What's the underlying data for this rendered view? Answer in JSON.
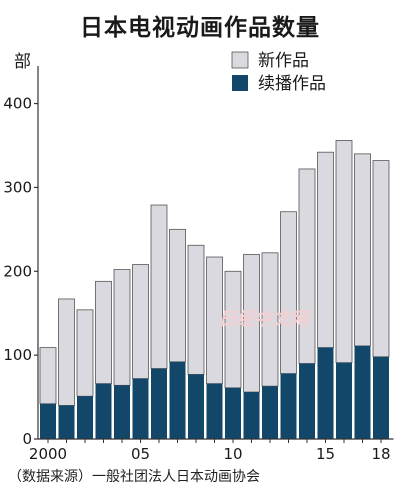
{
  "title": "日本电视动画作品数量",
  "unit": "部",
  "source": "（数据来源）一般社团法人日本动画协会",
  "watermark": "日经中文网",
  "colors": {
    "new": "#d9d9df",
    "continued": "#13476a",
    "axis": "#333333"
  },
  "chart_data": {
    "type": "bar",
    "stacked": true,
    "categories": [
      "2000",
      "2001",
      "2002",
      "2003",
      "2004",
      "2005",
      "2006",
      "2007",
      "2008",
      "2009",
      "2010",
      "2011",
      "2012",
      "2013",
      "2014",
      "2015",
      "2016",
      "2017",
      "2018"
    ],
    "x_tick_labels": [
      "2000",
      "05",
      "10",
      "15",
      "18"
    ],
    "x_tick_years": [
      2000,
      2005,
      2010,
      2015,
      2018
    ],
    "series": [
      {
        "name": "续播作品",
        "values": [
          42,
          40,
          51,
          66,
          64,
          72,
          84,
          92,
          77,
          66,
          61,
          56,
          63,
          78,
          90,
          109,
          91,
          111,
          98
        ]
      },
      {
        "name": "新作品",
        "values": [
          67,
          127,
          103,
          122,
          138,
          136,
          195,
          158,
          154,
          151,
          139,
          164,
          159,
          193,
          232,
          233,
          265,
          229,
          234
        ]
      }
    ],
    "totals": [
      109,
      167,
      154,
      188,
      202,
      208,
      279,
      250,
      231,
      217,
      200,
      220,
      222,
      271,
      322,
      342,
      356,
      340,
      332
    ],
    "yticks": [
      0,
      100,
      200,
      300,
      400
    ],
    "ylim": [
      0,
      440
    ],
    "legend_order": [
      "新作品",
      "续播作品"
    ],
    "legend_position": "top-right",
    "grid": false
  }
}
